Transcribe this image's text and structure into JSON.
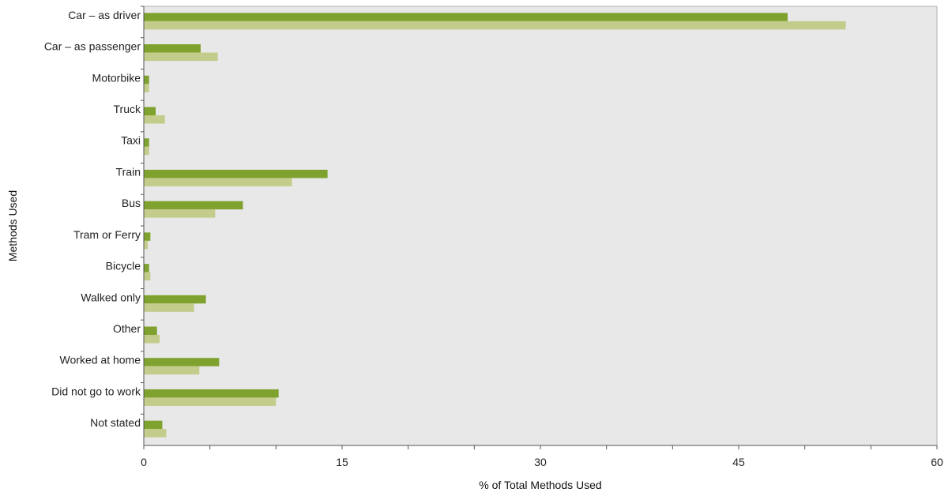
{
  "chart_data": {
    "type": "bar",
    "orientation": "horizontal",
    "categories": [
      "Car – as driver",
      "Car – as passenger",
      "Motorbike",
      "Truck",
      "Taxi",
      "Train",
      "Bus",
      "Tram or Ferry",
      "Bicycle",
      "Walked only",
      "Other",
      "Worked at home",
      "Did not go to work",
      "Not stated"
    ],
    "series": [
      {
        "color": "#7fa22f",
        "values": [
          48.7,
          4.3,
          0.4,
          0.9,
          0.4,
          13.9,
          7.5,
          0.5,
          0.4,
          4.7,
          1.0,
          5.7,
          10.2,
          1.4
        ]
      },
      {
        "color": "#c3cc8a",
        "values": [
          53.1,
          5.6,
          0.4,
          1.6,
          0.4,
          11.2,
          5.4,
          0.3,
          0.5,
          3.8,
          1.2,
          4.2,
          10.0,
          1.7
        ]
      }
    ],
    "xlabel": "% of Total Methods Used",
    "ylabel": "Methods Used",
    "xlim": [
      0,
      60
    ],
    "xticks": [
      0,
      15,
      30,
      45,
      60
    ],
    "tick_labels": [
      "0",
      "15",
      "30",
      "45",
      "60"
    ],
    "grid": false,
    "plot_background": "#e8e8e8"
  }
}
